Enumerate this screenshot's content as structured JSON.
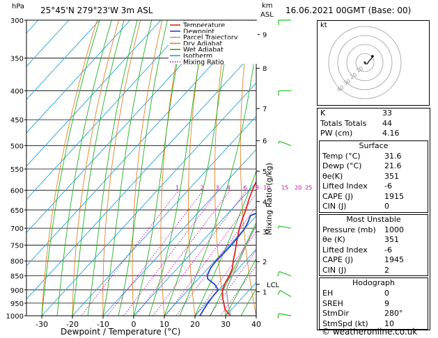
{
  "header": {
    "left_unit": "hPa",
    "location": "25°45'N 279°23'W 3m ASL",
    "km_label": "km",
    "asl_label": "ASL",
    "datetime": "16.06.2021 00GMT (Base: 00)"
  },
  "footer": {
    "credit": "© weatheronline.co.uk"
  },
  "chart_data": {
    "type": "line",
    "title": "25°45'N 279°23'W 3m ASL",
    "xlabel": "Dewpoint / Temperature (°C)",
    "ylabel": "hPa",
    "right_axis_label": "Mixing Ratio (g/kg)",
    "xlim": [
      -35,
      40
    ],
    "ylim": [
      1000,
      300
    ],
    "x_ticks": [
      -30,
      -20,
      -10,
      0,
      10,
      20,
      30,
      40
    ],
    "pressure_ticks": [
      300,
      350,
      400,
      450,
      500,
      550,
      600,
      650,
      700,
      750,
      800,
      850,
      900,
      950,
      1000
    ],
    "km_ticks": [
      {
        "km": 1,
        "p": 907
      },
      {
        "km": 2,
        "p": 802
      },
      {
        "km": 3,
        "p": 710
      },
      {
        "km": 4,
        "p": 628
      },
      {
        "km": 5,
        "p": 555
      },
      {
        "km": 6,
        "p": 490
      },
      {
        "km": 7,
        "p": 430
      },
      {
        "km": 8,
        "p": 365
      },
      {
        "km": 9,
        "p": 318
      }
    ],
    "lcl": {
      "label": "LCL",
      "p": 880
    },
    "mixing_ratio_labels": [
      "1",
      "2",
      "3",
      "4",
      "6",
      "8",
      "10",
      "15",
      "20",
      "25"
    ],
    "mixing_ratio_values": [
      1,
      2,
      3,
      4,
      6,
      8,
      10,
      15,
      20,
      25
    ],
    "legend": [
      {
        "name": "Temperature",
        "color": "#e02020",
        "style": "solid"
      },
      {
        "name": "Dewpoint",
        "color": "#2040d0",
        "style": "solid"
      },
      {
        "name": "Parcel Trajectory",
        "color": "#a0a0a0",
        "style": "solid"
      },
      {
        "name": "Dry Adiabat",
        "color": "#e08020",
        "style": "solid"
      },
      {
        "name": "Wet Adiabat",
        "color": "#20b020",
        "style": "solid"
      },
      {
        "name": "Isotherm",
        "color": "#20a0e0",
        "style": "solid"
      },
      {
        "name": "Mixing Ratio",
        "color": "#c000c0",
        "style": "dotted"
      }
    ],
    "series": [
      {
        "name": "Temperature",
        "color": "#e02020",
        "points": [
          [
            1000,
            31.6
          ],
          [
            975,
            28
          ],
          [
            950,
            25.6
          ],
          [
            925,
            23.2
          ],
          [
            900,
            21.2
          ],
          [
            875,
            20
          ],
          [
            850,
            19.2
          ],
          [
            825,
            18
          ],
          [
            800,
            16
          ],
          [
            775,
            14.2
          ],
          [
            750,
            12.2
          ],
          [
            725,
            10.2
          ],
          [
            700,
            8.2
          ],
          [
            675,
            6.4
          ],
          [
            650,
            4.8
          ],
          [
            625,
            2.8
          ],
          [
            600,
            1
          ],
          [
            575,
            -0.6
          ],
          [
            550,
            -2.8
          ],
          [
            525,
            -5
          ],
          [
            500,
            -7.2
          ],
          [
            475,
            -9.2
          ],
          [
            450,
            -11.2
          ],
          [
            425,
            -14
          ],
          [
            400,
            -17.2
          ],
          [
            375,
            -20
          ],
          [
            350,
            -24
          ],
          [
            325,
            -28
          ],
          [
            300,
            -32
          ]
        ]
      },
      {
        "name": "Dewpoint",
        "color": "#2040d0",
        "points": [
          [
            1000,
            21.6
          ],
          [
            975,
            21
          ],
          [
            950,
            20.4
          ],
          [
            925,
            20
          ],
          [
            900,
            19.8
          ],
          [
            880,
            17
          ],
          [
            860,
            13
          ],
          [
            850,
            12
          ],
          [
            825,
            10.8
          ],
          [
            800,
            10.4
          ],
          [
            775,
            10.6
          ],
          [
            750,
            10.6
          ],
          [
            725,
            10.4
          ],
          [
            700,
            10
          ],
          [
            680,
            9
          ],
          [
            665,
            8
          ],
          [
            650,
            11
          ],
          [
            640,
            9
          ],
          [
            630,
            11
          ],
          [
            620,
            9
          ],
          [
            610,
            5
          ],
          [
            600,
            3
          ],
          [
            590,
            4
          ],
          [
            580,
            0
          ],
          [
            570,
            2
          ],
          [
            560,
            4
          ],
          [
            550,
            2
          ],
          [
            530,
            3
          ],
          [
            510,
            5
          ],
          [
            500,
            -2
          ],
          [
            490,
            -6
          ],
          [
            470,
            -10
          ],
          [
            450,
            -11
          ],
          [
            430,
            -12
          ],
          [
            400,
            -4
          ],
          [
            390,
            -24
          ],
          [
            375,
            -4
          ],
          [
            365,
            -26
          ],
          [
            352,
            -14
          ],
          [
            340,
            -12
          ],
          [
            320,
            0
          ],
          [
            300,
            -1
          ]
        ]
      },
      {
        "name": "Parcel Trajectory",
        "color": "#a0a0a0",
        "points": [
          [
            1000,
            31.6
          ],
          [
            950,
            27
          ],
          [
            900,
            22.5
          ],
          [
            880,
            21.5
          ],
          [
            850,
            20.2
          ],
          [
            800,
            18
          ],
          [
            750,
            15.5
          ],
          [
            700,
            13.2
          ],
          [
            650,
            10.8
          ],
          [
            600,
            8.2
          ],
          [
            550,
            5.2
          ],
          [
            500,
            1.6
          ],
          [
            450,
            -2.6
          ],
          [
            400,
            -7.6
          ],
          [
            350,
            -13.6
          ],
          [
            300,
            -21
          ]
        ]
      }
    ],
    "hodograph": {
      "label": "kt",
      "rings_kt": [
        10,
        20,
        30,
        40
      ],
      "ring_labels": [
        "10",
        "20",
        "30",
        "40"
      ],
      "trace": [
        [
          0,
          -1
        ],
        [
          2,
          -1
        ],
        [
          3,
          1
        ],
        [
          5,
          3
        ],
        [
          6,
          5
        ]
      ]
    },
    "wind_barbs": [
      {
        "p": 300,
        "dir": 90,
        "spd": 10
      },
      {
        "p": 400,
        "dir": 90,
        "spd": 10
      },
      {
        "p": 500,
        "dir": 110,
        "spd": 5
      },
      {
        "p": 700,
        "dir": 100,
        "spd": 5
      },
      {
        "p": 850,
        "dir": 110,
        "spd": 10
      },
      {
        "p": 925,
        "dir": 120,
        "spd": 10
      },
      {
        "p": 1000,
        "dir": 100,
        "spd": 10
      }
    ]
  },
  "indices": {
    "top": [
      {
        "label": "K",
        "value": "33"
      },
      {
        "label": "Totals Totals",
        "value": "44"
      },
      {
        "label": "PW (cm)",
        "value": "4.16"
      }
    ],
    "surface": {
      "title": "Surface",
      "rows": [
        {
          "label": "Temp (°C)",
          "value": "31.6"
        },
        {
          "label": "Dewp (°C)",
          "value": "21.6"
        },
        {
          "label": "θe(K)",
          "value": "351"
        },
        {
          "label": "Lifted Index",
          "value": "-6"
        },
        {
          "label": "CAPE (J)",
          "value": "1915"
        },
        {
          "label": "CIN (J)",
          "value": "0"
        }
      ]
    },
    "unstable": {
      "title": "Most Unstable",
      "rows": [
        {
          "label": "Pressure (mb)",
          "value": "1000"
        },
        {
          "label": "θe (K)",
          "value": "351"
        },
        {
          "label": "Lifted Index",
          "value": "-6"
        },
        {
          "label": "CAPE (J)",
          "value": "1945"
        },
        {
          "label": "CIN (J)",
          "value": "2"
        }
      ]
    },
    "hodograph": {
      "title": "Hodograph",
      "rows": [
        {
          "label": "EH",
          "value": "0"
        },
        {
          "label": "SREH",
          "value": "9"
        },
        {
          "label": "StmDir",
          "value": "280°"
        },
        {
          "label": "StmSpd (kt)",
          "value": "10"
        }
      ]
    }
  }
}
